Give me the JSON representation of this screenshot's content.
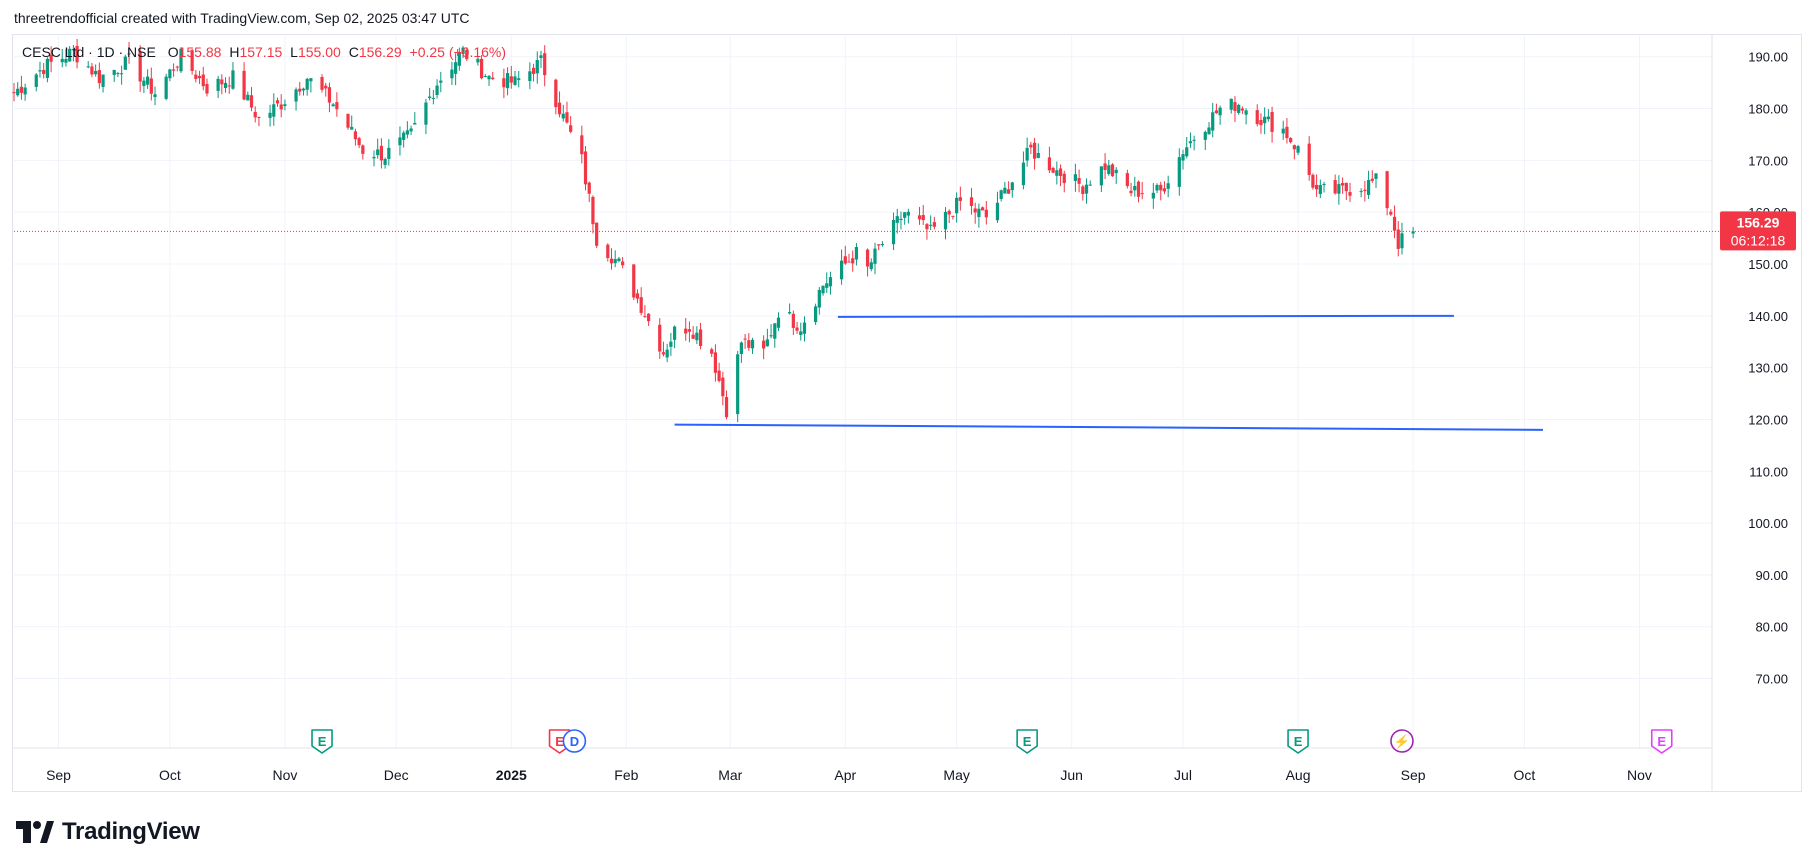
{
  "header": {
    "credit": "threetrendofficial created with TradingView.com, Sep 02, 2025 03:47 UTC"
  },
  "legend": {
    "symbol": "CESC Ltd · 1D · NSE",
    "o_label": "O",
    "o_value": "155.88",
    "h_label": "H",
    "h_value": "157.15",
    "l_label": "L",
    "l_value": "155.00",
    "c_label": "C",
    "c_value": "156.29",
    "change": "+0.25 (+0.16%)"
  },
  "price_badge": {
    "price": "156.29",
    "countdown": "06:12:18"
  },
  "branding": {
    "logo_text": "TradingView"
  },
  "colors": {
    "up": "#089981",
    "down": "#f23645",
    "trendline": "#2962ff",
    "price_line": "#f23645",
    "grid": "#f0f3fa",
    "earnings": "#089981",
    "earnings_negative": "#f23645",
    "dividend": "#2962ff",
    "split": "#9c27b0",
    "future_earnings": "#e040fb"
  },
  "chart_data": {
    "type": "candlestick",
    "symbol": "CESC Ltd",
    "interval": "1D",
    "exchange": "NSE",
    "y_ticks": [
      "190.00",
      "180.00",
      "170.00",
      "160.00",
      "150.00",
      "140.00",
      "130.00",
      "120.00",
      "110.00",
      "100.00",
      "90.00",
      "80.00",
      "70.00"
    ],
    "y_range": [
      62,
      194
    ],
    "x_ticks": [
      {
        "label": "Sep",
        "date": "2024-09-01",
        "bold": false
      },
      {
        "label": "Oct",
        "date": "2024-10-01",
        "bold": false
      },
      {
        "label": "Nov",
        "date": "2024-11-01",
        "bold": false
      },
      {
        "label": "Dec",
        "date": "2024-12-01",
        "bold": false
      },
      {
        "label": "2025",
        "date": "2025-01-01",
        "bold": true
      },
      {
        "label": "Feb",
        "date": "2025-02-01",
        "bold": false
      },
      {
        "label": "Mar",
        "date": "2025-03-01",
        "bold": false
      },
      {
        "label": "Apr",
        "date": "2025-04-01",
        "bold": false
      },
      {
        "label": "May",
        "date": "2025-05-01",
        "bold": false
      },
      {
        "label": "Jun",
        "date": "2025-06-01",
        "bold": false
      },
      {
        "label": "Jul",
        "date": "2025-07-01",
        "bold": false
      },
      {
        "label": "Aug",
        "date": "2025-08-01",
        "bold": false
      },
      {
        "label": "Sep",
        "date": "2025-09-01",
        "bold": false
      },
      {
        "label": "Oct",
        "date": "2025-10-01",
        "bold": false
      },
      {
        "label": "Nov",
        "date": "2025-11-01",
        "bold": false
      }
    ],
    "x_range": [
      "2024-08-20",
      "2025-11-20"
    ],
    "current_price": 156.29,
    "trendlines": [
      {
        "from": {
          "date": "2025-03-30",
          "price": 139.8
        },
        "to": {
          "date": "2025-09-12",
          "price": 140.0
        }
      },
      {
        "from": {
          "date": "2025-02-14",
          "price": 119.0
        },
        "to": {
          "date": "2025-10-06",
          "price": 118.0
        }
      }
    ],
    "events": [
      {
        "date": "2024-11-11",
        "type": "earnings",
        "label": "E"
      },
      {
        "date": "2025-01-14",
        "type": "earnings_negative",
        "label": "E"
      },
      {
        "date": "2025-01-18",
        "type": "dividend",
        "label": "D"
      },
      {
        "date": "2025-05-20",
        "type": "earnings",
        "label": "E"
      },
      {
        "date": "2025-08-01",
        "type": "earnings",
        "label": "E"
      },
      {
        "date": "2025-08-29",
        "type": "split",
        "label": "⚡"
      },
      {
        "date": "2025-11-07",
        "type": "future_earnings",
        "label": "E"
      }
    ],
    "price_anchors": [
      [
        "2024-08-20",
        183
      ],
      [
        "2024-08-28",
        188
      ],
      [
        "2024-09-05",
        191
      ],
      [
        "2024-09-12",
        186
      ],
      [
        "2024-09-20",
        189
      ],
      [
        "2024-09-27",
        183
      ],
      [
        "2024-10-04",
        190
      ],
      [
        "2024-10-11",
        184
      ],
      [
        "2024-10-18",
        186
      ],
      [
        "2024-10-25",
        178
      ],
      [
        "2024-10-31",
        181
      ],
      [
        "2024-11-07",
        186
      ],
      [
        "2024-11-14",
        181
      ],
      [
        "2024-11-22",
        172
      ],
      [
        "2024-11-28",
        171
      ],
      [
        "2024-12-05",
        175
      ],
      [
        "2024-12-12",
        185
      ],
      [
        "2024-12-19",
        191
      ],
      [
        "2024-12-26",
        186
      ],
      [
        "2025-01-02",
        185
      ],
      [
        "2025-01-09",
        189
      ],
      [
        "2025-01-14",
        180
      ],
      [
        "2025-01-20",
        170
      ],
      [
        "2025-01-24",
        155
      ],
      [
        "2025-01-30",
        150
      ],
      [
        "2025-02-05",
        142
      ],
      [
        "2025-02-11",
        133
      ],
      [
        "2025-02-14",
        137
      ],
      [
        "2025-02-18",
        138
      ],
      [
        "2025-02-24",
        133
      ],
      [
        "2025-02-28",
        122
      ],
      [
        "2025-03-04",
        135
      ],
      [
        "2025-03-10",
        133
      ],
      [
        "2025-03-14",
        141
      ],
      [
        "2025-03-20",
        138
      ],
      [
        "2025-03-26",
        146
      ],
      [
        "2025-04-01",
        150
      ],
      [
        "2025-04-04",
        152
      ],
      [
        "2025-04-07",
        149
      ],
      [
        "2025-04-10",
        153
      ],
      [
        "2025-04-17",
        160
      ],
      [
        "2025-04-24",
        156
      ],
      [
        "2025-05-02",
        162
      ],
      [
        "2025-05-09",
        159
      ],
      [
        "2025-05-15",
        165
      ],
      [
        "2025-05-21",
        172
      ],
      [
        "2025-05-28",
        168
      ],
      [
        "2025-06-04",
        165
      ],
      [
        "2025-06-10",
        169
      ],
      [
        "2025-06-17",
        164
      ],
      [
        "2025-06-25",
        164
      ],
      [
        "2025-07-01",
        172
      ],
      [
        "2025-07-07",
        177
      ],
      [
        "2025-07-11",
        180
      ],
      [
        "2025-07-16",
        181
      ],
      [
        "2025-07-22",
        178
      ],
      [
        "2025-07-28",
        176
      ],
      [
        "2025-08-01",
        172
      ],
      [
        "2025-08-06",
        164
      ],
      [
        "2025-08-12",
        164
      ],
      [
        "2025-08-18",
        165
      ],
      [
        "2025-08-22",
        166
      ],
      [
        "2025-08-26",
        160
      ],
      [
        "2025-08-28",
        154
      ],
      [
        "2025-09-01",
        156.29
      ]
    ]
  }
}
